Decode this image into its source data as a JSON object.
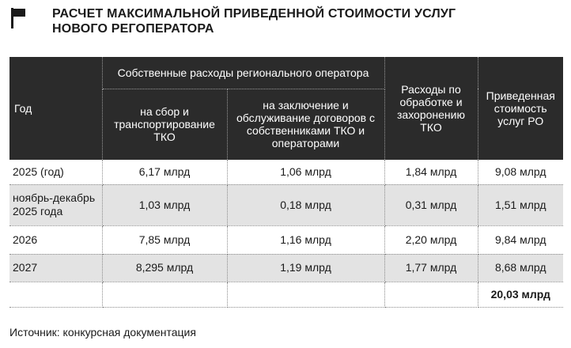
{
  "header": {
    "title_line1": "РАСЧЕТ МАКСИМАЛЬНОЙ ПРИВЕДЕННОЙ СТОИМОСТИ УСЛУГ",
    "title_line2": "НОВОГО РЕГОПЕРАТОРА",
    "flag_icon": "flag-icon"
  },
  "table": {
    "columns": {
      "year": "Год",
      "own_costs_group": "Собственные расходы регионального оператора",
      "collection": "на сбор и транспортирование ТКО",
      "contracts": "на заключение и обслуживание договоров с собственниками ТКО и операторами",
      "processing": "Расходы по обработке и захоронению ТКО",
      "reduced_cost": "Приведенная стоимость услуг РО"
    },
    "rows": [
      {
        "year": "2025 (год)",
        "collection": "6,17 млрд",
        "contracts": "1,06 млрд",
        "processing": "1,84 млрд",
        "reduced_cost": "9,08 млрд"
      },
      {
        "year": "ноябрь-декабрь 2025 года",
        "collection": "1,03 млрд",
        "contracts": "0,18 млрд",
        "processing": "0,31 млрд",
        "reduced_cost": "1,51 млрд"
      },
      {
        "year": "2026",
        "collection": "7,85 млрд",
        "contracts": "1,16 млрд",
        "processing": "2,20 млрд",
        "reduced_cost": "9,84 млрд"
      },
      {
        "year": "2027",
        "collection": "8,295 млрд",
        "contracts": "1,19 млрд",
        "processing": "1,77 млрд",
        "reduced_cost": "8,68 млрд"
      }
    ],
    "total": "20,03 млрд"
  },
  "footer": {
    "source": "Источник: конкурсная документация"
  },
  "colors": {
    "header_bg": "#2b2b2b",
    "shade_row": "#e3e3e3",
    "text": "#1a1a1a"
  }
}
